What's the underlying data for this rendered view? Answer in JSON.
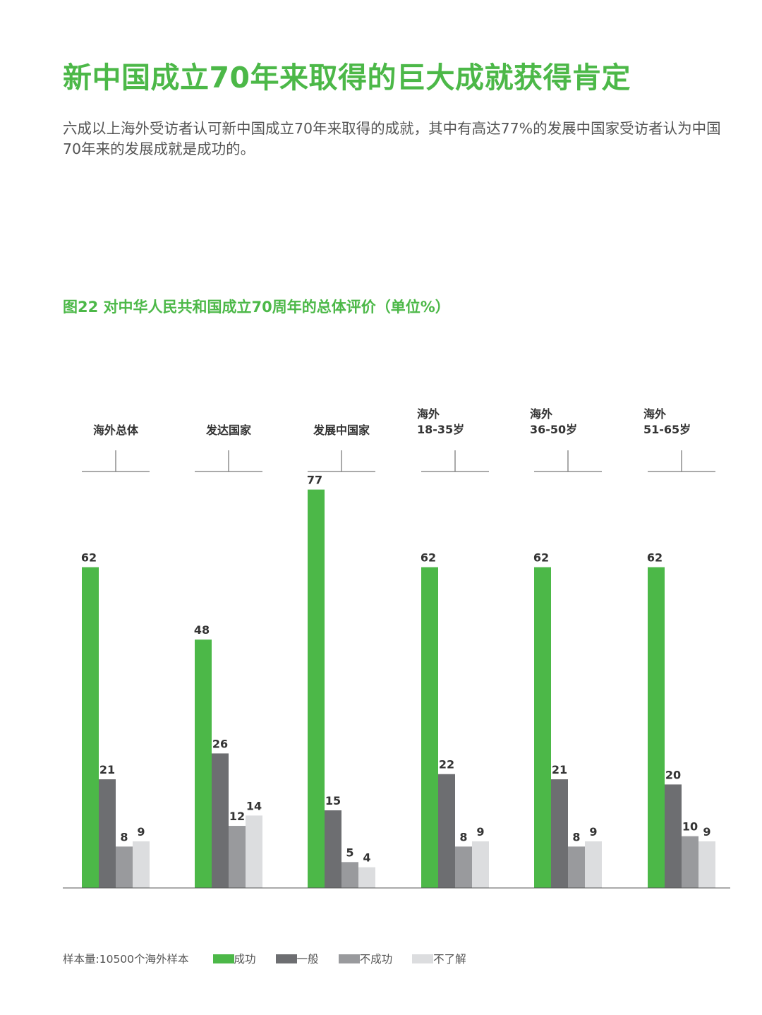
{
  "headline": "新中国成立70年来取得的巨大成就获得肯定",
  "intro": "六成以上海外受访者认可新中国成立70年来取得的成就，其中有高达77%的发展中国家受访者认为中国70年来的发展成就是成功的。",
  "figure_title": "图22 对中华人民共和国成立70周年的总体评价（单位%）",
  "footer": {
    "sample_note": "样本量:10500个海外样本"
  },
  "chart_data": {
    "type": "bar",
    "categories": [
      [
        "海外总体"
      ],
      [
        "发达国家"
      ],
      [
        "发展中国家"
      ],
      [
        "海外",
        "18-35岁"
      ],
      [
        "海外",
        "36-50岁"
      ],
      [
        "海外",
        "51-65岁"
      ]
    ],
    "series": [
      {
        "name": "成功",
        "color": "#4cb848",
        "values": [
          62,
          48,
          77,
          62,
          62,
          62
        ]
      },
      {
        "name": "一般",
        "color": "#6d6e71",
        "values": [
          21,
          26,
          15,
          22,
          21,
          20
        ]
      },
      {
        "name": "不成功",
        "color": "#999a9d",
        "values": [
          8,
          12,
          5,
          8,
          8,
          10
        ]
      },
      {
        "name": "不了解",
        "color": "#dcdddf",
        "values": [
          9,
          14,
          4,
          9,
          9,
          9
        ]
      }
    ],
    "ylim": [
      0,
      80
    ],
    "legend_position": "bottom-left",
    "grid": false
  }
}
